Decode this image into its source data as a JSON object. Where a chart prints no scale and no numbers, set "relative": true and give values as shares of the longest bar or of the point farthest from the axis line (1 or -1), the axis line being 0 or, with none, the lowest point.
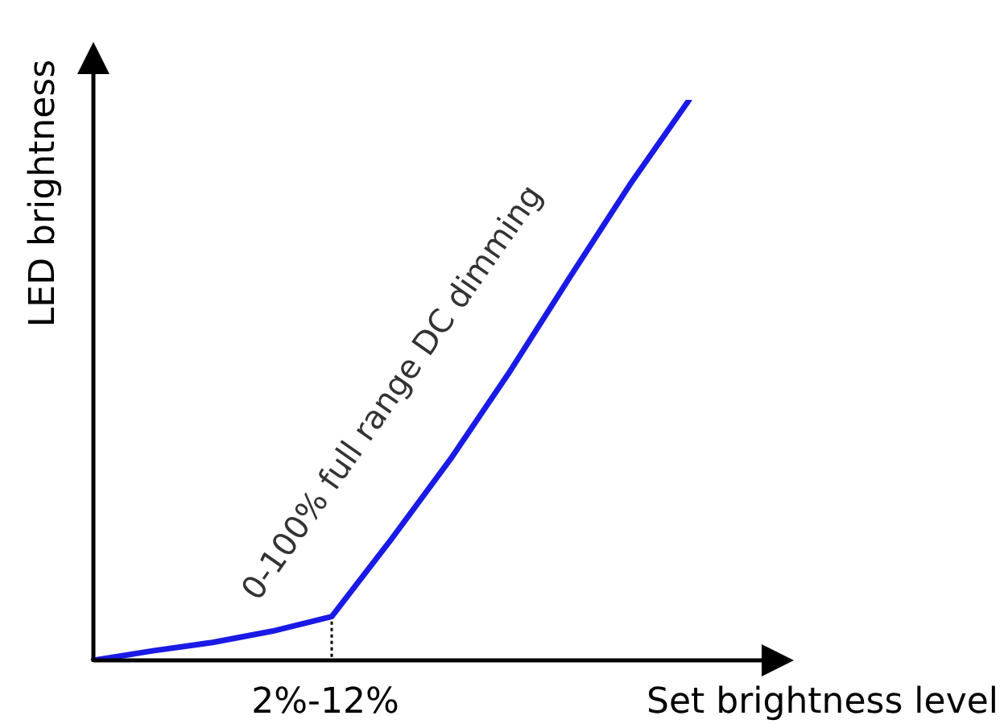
{
  "chart_data": {
    "type": "line",
    "relative": true,
    "xlabel": "Set brightness level",
    "ylabel": "LED brightness",
    "categories": [
      null,
      null,
      null,
      null,
      null,
      null,
      null,
      null,
      null,
      null,
      null
    ],
    "series": [
      {
        "color": "#1a1ae6",
        "values": [
          0,
          0.017,
          0.032,
          0.052,
          0.078,
          0.216,
          0.36,
          0.517,
          0.684,
          0.848,
          1
        ]
      }
    ],
    "annotations": [
      "0-100% full range DC dimming",
      "2%-12%"
    ],
    "legend": false,
    "marker": "none",
    "line_style": "solid"
  }
}
